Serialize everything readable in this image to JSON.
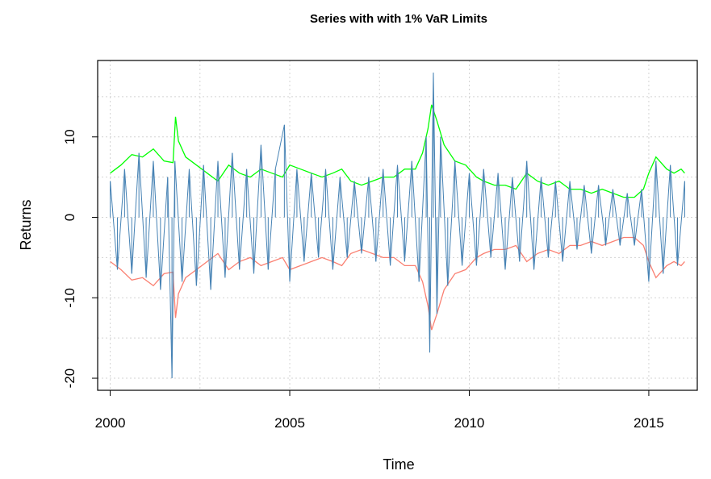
{
  "chart_data": {
    "type": "line",
    "title": "Series with with 1% VaR Limits",
    "xlabel": "Time",
    "ylabel": "Returns",
    "xlim": [
      1999.65,
      2016.35
    ],
    "ylim": [
      -21.5,
      19.5
    ],
    "x_ticks": [
      2000,
      2005,
      2010,
      2015
    ],
    "y_ticks": [
      -20,
      -10,
      0,
      10
    ],
    "grid": true,
    "colors": {
      "returns": "#4682B4",
      "upper": "#00FF00",
      "lower": "#FA8072",
      "grid": "#D3D3D3"
    },
    "series": [
      {
        "key": "upper",
        "x": [
          2000.0,
          2000.3,
          2000.6,
          2000.9,
          2001.2,
          2001.5,
          2001.75,
          2001.82,
          2001.9,
          2002.1,
          2002.4,
          2002.7,
          2003.0,
          2003.3,
          2003.6,
          2003.9,
          2004.2,
          2004.5,
          2004.8,
          2005.0,
          2005.3,
          2005.6,
          2005.9,
          2006.2,
          2006.45,
          2006.7,
          2007.0,
          2007.3,
          2007.6,
          2007.9,
          2008.2,
          2008.5,
          2008.7,
          2008.85,
          2008.95,
          2009.1,
          2009.3,
          2009.6,
          2009.9,
          2010.2,
          2010.4,
          2010.7,
          2011.0,
          2011.3,
          2011.6,
          2011.9,
          2012.2,
          2012.5,
          2012.8,
          2013.1,
          2013.4,
          2013.7,
          2014.0,
          2014.3,
          2014.6,
          2014.85,
          2015.0,
          2015.2,
          2015.5,
          2015.7,
          2015.9,
          2016.0
        ],
        "values": [
          5.5,
          6.5,
          7.8,
          7.5,
          8.5,
          7.0,
          6.8,
          12.5,
          9.5,
          7.5,
          6.5,
          5.5,
          4.5,
          6.5,
          5.5,
          5.0,
          6.0,
          5.5,
          5.0,
          6.5,
          6.0,
          5.5,
          5.0,
          5.5,
          6.0,
          4.5,
          4.0,
          4.5,
          5.0,
          5.0,
          6.0,
          6.0,
          8.0,
          11.0,
          14.0,
          12.0,
          9.0,
          7.0,
          6.5,
          5.0,
          4.5,
          4.0,
          4.0,
          3.5,
          5.5,
          4.5,
          4.0,
          4.5,
          3.5,
          3.5,
          3.0,
          3.5,
          3.0,
          2.5,
          2.5,
          3.5,
          5.5,
          7.5,
          6.0,
          5.5,
          6.0,
          5.5
        ]
      },
      {
        "key": "lower",
        "x": [
          2000.0,
          2000.3,
          2000.6,
          2000.9,
          2001.2,
          2001.5,
          2001.75,
          2001.82,
          2001.9,
          2002.1,
          2002.4,
          2002.7,
          2003.0,
          2003.3,
          2003.6,
          2003.9,
          2004.2,
          2004.5,
          2004.8,
          2005.0,
          2005.3,
          2005.6,
          2005.9,
          2006.2,
          2006.45,
          2006.7,
          2007.0,
          2007.3,
          2007.6,
          2007.9,
          2008.2,
          2008.5,
          2008.7,
          2008.85,
          2008.95,
          2009.1,
          2009.3,
          2009.6,
          2009.9,
          2010.2,
          2010.4,
          2010.7,
          2011.0,
          2011.3,
          2011.6,
          2011.9,
          2012.2,
          2012.5,
          2012.8,
          2013.1,
          2013.4,
          2013.7,
          2014.0,
          2014.3,
          2014.6,
          2014.85,
          2015.0,
          2015.2,
          2015.5,
          2015.7,
          2015.9,
          2016.0
        ],
        "values": [
          -5.5,
          -6.5,
          -7.8,
          -7.5,
          -8.5,
          -7.0,
          -6.8,
          -12.5,
          -9.5,
          -7.5,
          -6.5,
          -5.5,
          -4.5,
          -6.5,
          -5.5,
          -5.0,
          -6.0,
          -5.5,
          -5.0,
          -6.5,
          -6.0,
          -5.5,
          -5.0,
          -5.5,
          -6.0,
          -4.5,
          -4.0,
          -4.5,
          -5.0,
          -5.0,
          -6.0,
          -6.0,
          -8.0,
          -11.0,
          -14.0,
          -12.0,
          -9.0,
          -7.0,
          -6.5,
          -5.0,
          -4.5,
          -4.0,
          -4.0,
          -3.5,
          -5.5,
          -4.5,
          -4.0,
          -4.5,
          -3.5,
          -3.5,
          -3.0,
          -3.5,
          -3.0,
          -2.5,
          -2.5,
          -3.5,
          -5.5,
          -7.5,
          -6.0,
          -5.5,
          -6.0,
          -5.5
        ]
      },
      {
        "key": "returns",
        "description_note": "",
        "x": [
          2000.0,
          2000.2,
          2000.4,
          2000.6,
          2000.8,
          2001.0,
          2001.2,
          2001.4,
          2001.6,
          2001.72,
          2001.8,
          2002.0,
          2002.2,
          2002.4,
          2002.6,
          2002.8,
          2003.0,
          2003.2,
          2003.4,
          2003.6,
          2003.8,
          2004.0,
          2004.2,
          2004.4,
          2004.6,
          2004.85,
          2005.0,
          2005.2,
          2005.4,
          2005.6,
          2005.8,
          2006.0,
          2006.2,
          2006.4,
          2006.6,
          2006.8,
          2007.0,
          2007.2,
          2007.4,
          2007.6,
          2007.8,
          2008.0,
          2008.2,
          2008.4,
          2008.6,
          2008.8,
          2008.9,
          2009.0,
          2009.1,
          2009.2,
          2009.4,
          2009.6,
          2009.8,
          2010.0,
          2010.2,
          2010.4,
          2010.6,
          2010.8,
          2011.0,
          2011.2,
          2011.4,
          2011.6,
          2011.8,
          2012.0,
          2012.2,
          2012.4,
          2012.6,
          2012.8,
          2013.0,
          2013.2,
          2013.4,
          2013.6,
          2013.8,
          2014.0,
          2014.2,
          2014.4,
          2014.6,
          2014.8,
          2015.0,
          2015.2,
          2015.4,
          2015.6,
          2015.8,
          2016.0
        ],
        "values": [
          4.5,
          -6.5,
          6.0,
          -7.0,
          8.0,
          -7.5,
          7.0,
          -9.0,
          5.0,
          -20.0,
          7.0,
          -8.0,
          6.0,
          -8.5,
          6.5,
          -9.0,
          7.0,
          -7.5,
          8.0,
          -6.5,
          6.0,
          -7.0,
          9.0,
          -6.5,
          6.0,
          11.5,
          -8.0,
          6.0,
          -5.5,
          5.5,
          -5.0,
          6.0,
          -6.5,
          5.0,
          -5.0,
          4.5,
          -4.5,
          5.0,
          -5.5,
          6.0,
          -6.0,
          6.5,
          -5.5,
          7.0,
          -8.0,
          10.0,
          -16.8,
          18.0,
          -12.0,
          10.0,
          -8.5,
          7.0,
          -6.0,
          5.5,
          -6.0,
          6.0,
          -5.0,
          5.5,
          -6.5,
          5.0,
          -5.5,
          7.0,
          -6.5,
          5.0,
          -5.0,
          4.5,
          -5.5,
          4.5,
          -4.0,
          4.0,
          -4.5,
          4.0,
          -3.5,
          3.5,
          -3.5,
          3.0,
          -3.5,
          3.5,
          -8.0,
          7.0,
          -7.0,
          6.5,
          -6.0,
          4.5
        ]
      }
    ]
  }
}
